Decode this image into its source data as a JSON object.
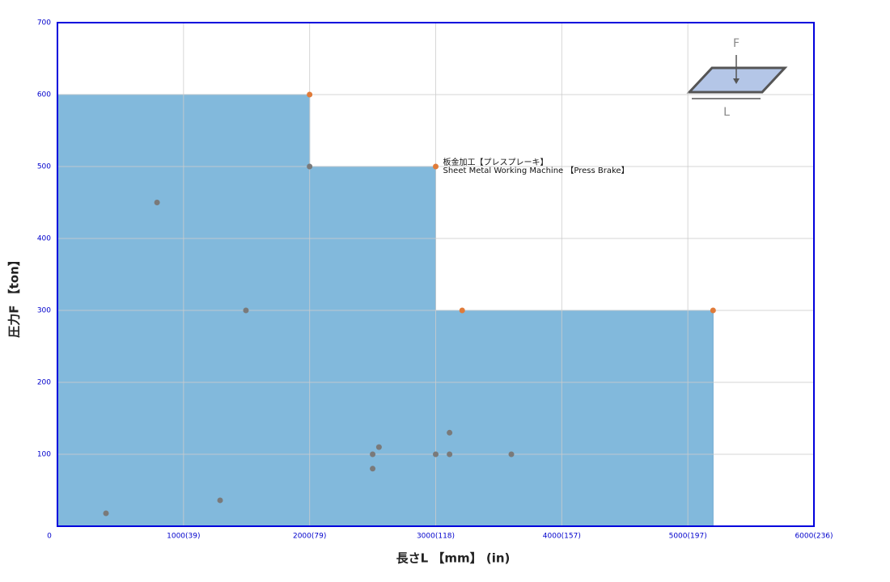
{
  "chart_data": {
    "type": "area",
    "x_label": "長さL 【mm】 (in)",
    "y_label": "圧力F 【ton】",
    "annotation": [
      "板金加工【プレスプレーキ】",
      "Sheet Metal Working Machine 【Press Brake】"
    ],
    "inset_labels": [
      "F",
      "L"
    ],
    "xlim": [
      0,
      6000
    ],
    "ylim": [
      0,
      700
    ],
    "xticks": [
      0,
      {
        "value": 1000,
        "label": "1000(39)"
      },
      {
        "value": 2000,
        "label": "2000(79)"
      },
      {
        "value": 3000,
        "label": "3000(118)"
      },
      {
        "value": 4000,
        "label": "4000(157)"
      },
      {
        "value": 5000,
        "label": "5000(197)"
      },
      {
        "value": 6000,
        "label": "6000(236)"
      }
    ],
    "yticks": [
      100,
      200,
      300,
      400,
      500,
      600,
      700
    ],
    "grid": true,
    "area": {
      "color": "#80b8db",
      "x": [
        0,
        2000,
        2000,
        3000,
        3000,
        5200
      ],
      "y": [
        600,
        600,
        500,
        500,
        300,
        300
      ]
    },
    "highlight_points": {
      "color": "#e07b39",
      "x": [
        2000,
        3000,
        3210,
        5200
      ],
      "y": [
        600,
        500,
        300,
        300
      ]
    },
    "points": {
      "color": "#7a7a7a",
      "x": [
        385,
        790,
        1290,
        1495,
        2000,
        2500,
        2500,
        2550,
        3000,
        3110,
        3110,
        3600
      ],
      "y": [
        18,
        450,
        36,
        300,
        500,
        100,
        80,
        110,
        100,
        130,
        100,
        100
      ]
    }
  }
}
